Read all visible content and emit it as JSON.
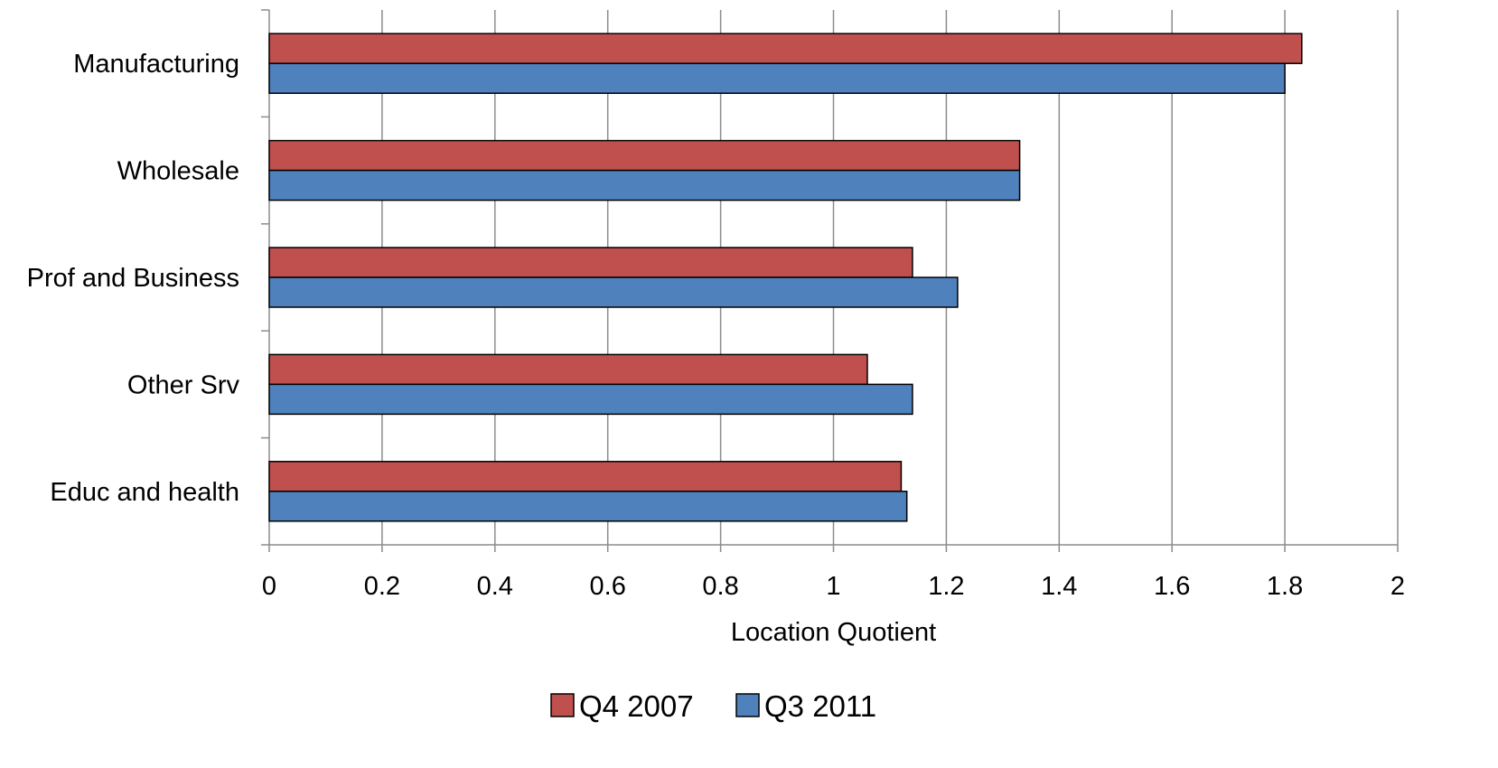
{
  "chart_data": {
    "type": "bar",
    "orientation": "horizontal",
    "categories": [
      "Manufacturing",
      "Wholesale",
      "Prof and Business",
      "Other Srv",
      "Educ and health"
    ],
    "series": [
      {
        "name": "Q4 2007",
        "values": [
          1.83,
          1.33,
          1.14,
          1.06,
          1.12
        ]
      },
      {
        "name": "Q3 2011",
        "values": [
          1.8,
          1.33,
          1.22,
          1.14,
          1.13
        ]
      }
    ],
    "xlabel": "Location Quotient",
    "ylabel": "",
    "title": "",
    "xlim": [
      0,
      2
    ],
    "xticks": [
      "0",
      "0.2",
      "0.4",
      "0.6",
      "0.8",
      "1",
      "1.2",
      "1.4",
      "1.6",
      "1.8",
      "2"
    ],
    "grid": "vertical",
    "legend_position": "bottom",
    "colors": {
      "Q4 2007": "#C0504D",
      "Q3 2011": "#4F81BD",
      "grid": "#8C8C8C",
      "bar_border": "#000000"
    }
  }
}
